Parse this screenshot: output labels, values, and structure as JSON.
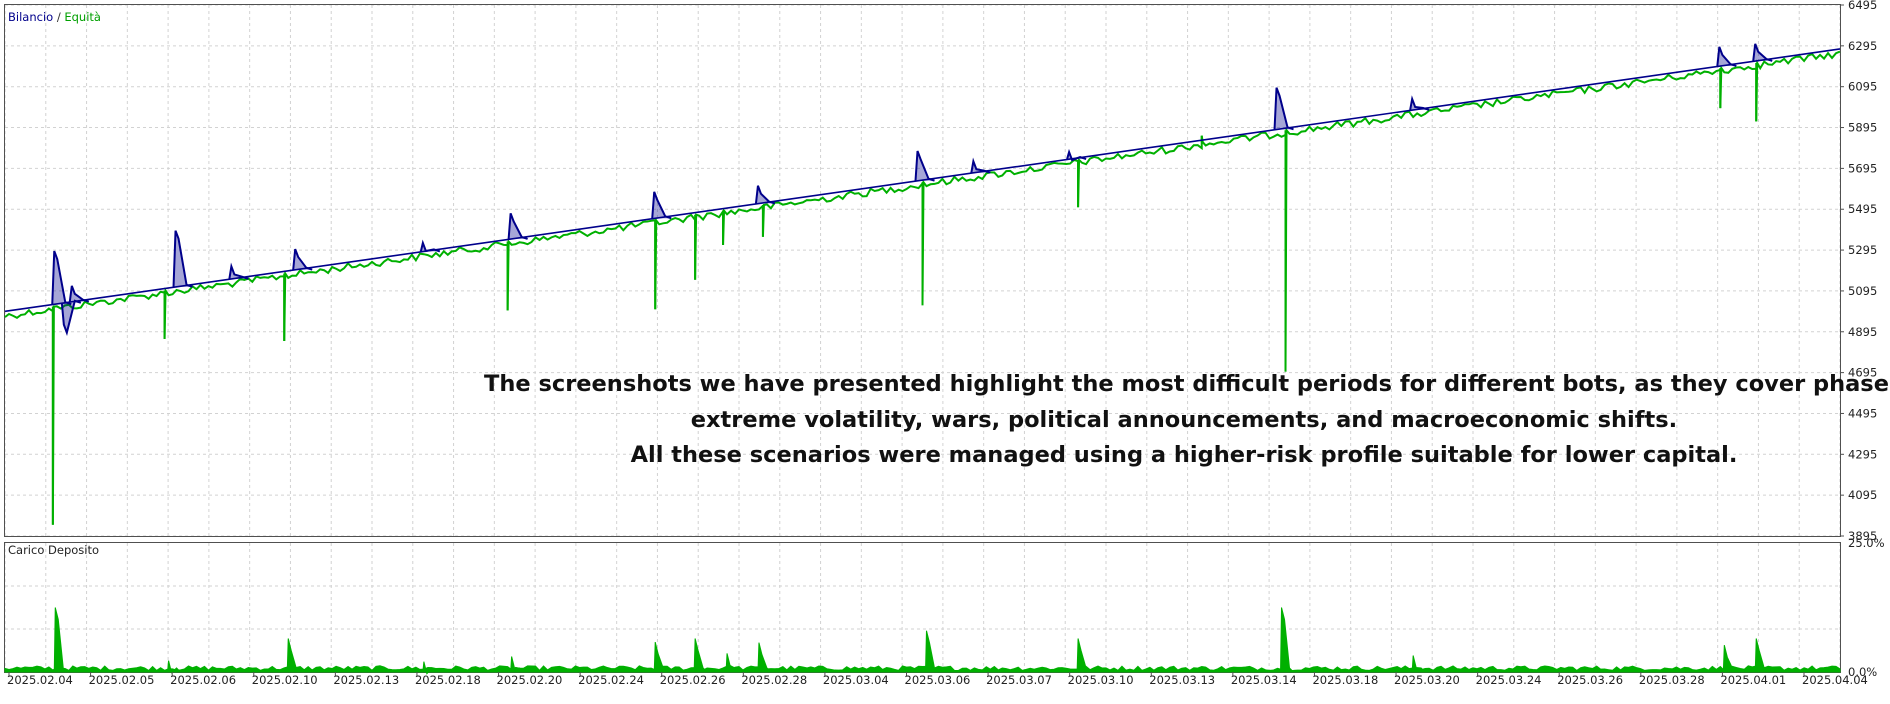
{
  "chart_data": [
    {
      "type": "line",
      "legend": {
        "balance_label": "Bilancio",
        "separator": " / ",
        "equity_label": "Equità",
        "placement": "top-left"
      },
      "colors": {
        "balance": "#00008b",
        "equity": "#00b000",
        "grid": "#d2d2d2",
        "axis_text": "#222222"
      },
      "grid": true,
      "ylim": [
        3895,
        6495
      ],
      "y_ticks": [
        6495,
        6295,
        6095,
        5895,
        5695,
        5495,
        5295,
        5095,
        4895,
        4695,
        4495,
        4295,
        4095,
        3895
      ],
      "x_range": [
        0,
        230
      ],
      "balance_line": {
        "start": 4995,
        "end": 6280
      },
      "series": [
        {
          "name": "Bilancio",
          "spikes": [
            {
              "x": 6.3,
              "value": 5290
            },
            {
              "x": 7.5,
              "value": 4930
            },
            {
              "x": 8.5,
              "value": 5120
            },
            {
              "x": 21.5,
              "value": 5390
            },
            {
              "x": 28.5,
              "value": 5215
            },
            {
              "x": 36.5,
              "value": 5300
            },
            {
              "x": 52.5,
              "value": 5330
            },
            {
              "x": 63.5,
              "value": 5475
            },
            {
              "x": 81.5,
              "value": 5580
            },
            {
              "x": 94.5,
              "value": 5610
            },
            {
              "x": 114.5,
              "value": 5780
            },
            {
              "x": 121.5,
              "value": 5730
            },
            {
              "x": 133.5,
              "value": 5775
            },
            {
              "x": 159.5,
              "value": 6090
            },
            {
              "x": 176.5,
              "value": 6035
            },
            {
              "x": 215,
              "value": 6290
            },
            {
              "x": 219.5,
              "value": 6305
            }
          ]
        },
        {
          "name": "Equità",
          "dips": [
            {
              "x": 6,
              "value": 3950
            },
            {
              "x": 20,
              "value": 4860
            },
            {
              "x": 35,
              "value": 4850
            },
            {
              "x": 63,
              "value": 5000
            },
            {
              "x": 81.5,
              "value": 5005
            },
            {
              "x": 86.5,
              "value": 5150
            },
            {
              "x": 90,
              "value": 5320
            },
            {
              "x": 95,
              "value": 5360
            },
            {
              "x": 115,
              "value": 5025
            },
            {
              "x": 134.5,
              "value": 5505
            },
            {
              "x": 150,
              "value": 5855
            },
            {
              "x": 160.5,
              "value": 4700
            },
            {
              "x": 215,
              "value": 5990
            },
            {
              "x": 219.5,
              "value": 5925
            }
          ]
        }
      ]
    },
    {
      "type": "area",
      "title": "Carico Deposito",
      "colors": {
        "fill": "#00b000"
      },
      "ylim": [
        0,
        25
      ],
      "y_tick_labels": [
        "25.0%",
        "0.0%"
      ],
      "x_tick_labels": [
        "2025.02.04",
        "2025.02.05",
        "2025.02.06",
        "2025.02.10",
        "2025.02.13",
        "2025.02.18",
        "2025.02.20",
        "2025.02.24",
        "2025.02.26",
        "2025.02.28",
        "2025.03.04",
        "2025.03.06",
        "2025.03.07",
        "2025.03.10",
        "2025.03.13",
        "2025.03.14",
        "2025.03.18",
        "2025.03.20",
        "2025.03.24",
        "2025.03.26",
        "2025.03.28",
        "2025.04.01",
        "2025.04.04"
      ],
      "spikes": [
        {
          "x": 6.3,
          "value": 12.5
        },
        {
          "x": 20.5,
          "value": 2.2
        },
        {
          "x": 35.5,
          "value": 6.5
        },
        {
          "x": 52.5,
          "value": 2.0
        },
        {
          "x": 63.5,
          "value": 3.0
        },
        {
          "x": 81.5,
          "value": 5.8
        },
        {
          "x": 86.5,
          "value": 6.5
        },
        {
          "x": 90.5,
          "value": 3.6
        },
        {
          "x": 94.5,
          "value": 5.7
        },
        {
          "x": 115.5,
          "value": 8.0
        },
        {
          "x": 134.5,
          "value": 6.5
        },
        {
          "x": 160,
          "value": 12.5
        },
        {
          "x": 176.5,
          "value": 3.2
        },
        {
          "x": 215.5,
          "value": 5.2
        },
        {
          "x": 219.5,
          "value": 6.5
        }
      ]
    }
  ],
  "overlay": {
    "line1": "The screenshots we have presented highlight the most difficult periods for different bots, as they cover phases of",
    "line2": "extreme volatility, wars, political announcements, and macroeconomic shifts.",
    "line3": "All these scenarios were managed using a higher-risk profile suitable for lower capital."
  }
}
